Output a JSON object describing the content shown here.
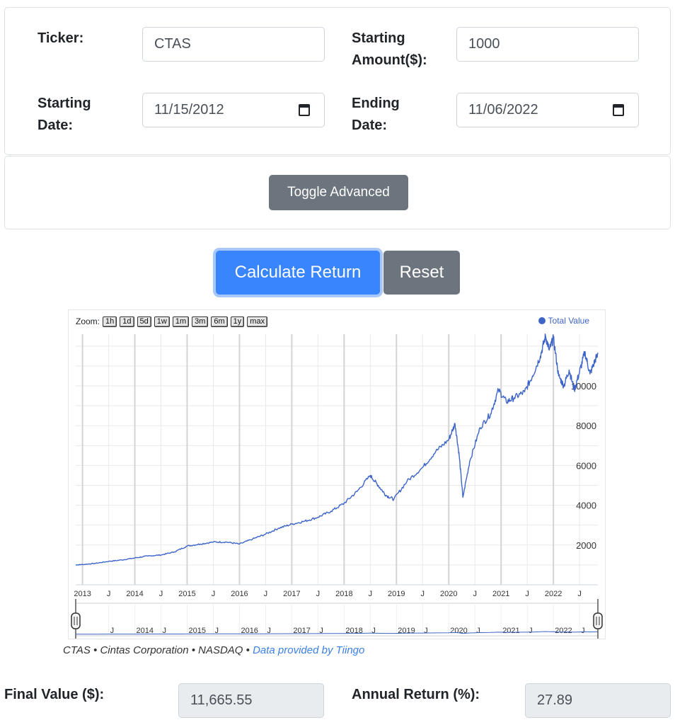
{
  "form": {
    "ticker_label": "Ticker:",
    "ticker_value": "CTAS",
    "amount_label_1": "Starting",
    "amount_label_2": "Amount($):",
    "amount_value": "1000",
    "start_label_1": "Starting",
    "start_label_2": "Date:",
    "start_value": "11/15/2012",
    "end_label_1": "Ending",
    "end_label_2": "Date:",
    "end_value": "11/06/2022"
  },
  "buttons": {
    "toggle_advanced": "Toggle Advanced",
    "calculate": "Calculate Return",
    "reset": "Reset"
  },
  "chart": {
    "zoom_label": "Zoom:",
    "zoom_buttons": [
      "1h",
      "1d",
      "5d",
      "1w",
      "1m",
      "3m",
      "6m",
      "1y",
      "max"
    ],
    "legend": "Total Value",
    "colors": {
      "series": "#3d64c8",
      "grid": "#e9e9e9",
      "legend_dot": "#3d64c8"
    },
    "caption_main": "CTAS • Cintas Corporation • NASDAQ • ",
    "caption_link": "Data provided by Tiingo",
    "link_color": "#3c7fe6"
  },
  "chart_data": {
    "type": "line",
    "series": [
      {
        "name": "Total Value",
        "x": [
          2012.87,
          2013.0,
          2013.25,
          2013.5,
          2013.75,
          2014.0,
          2014.25,
          2014.5,
          2014.75,
          2015.0,
          2015.25,
          2015.5,
          2015.75,
          2016.0,
          2016.25,
          2016.5,
          2016.75,
          2017.0,
          2017.25,
          2017.5,
          2017.75,
          2018.0,
          2018.25,
          2018.5,
          2018.65,
          2018.8,
          2018.95,
          2019.2,
          2019.5,
          2019.75,
          2020.0,
          2020.12,
          2020.2,
          2020.27,
          2020.4,
          2020.6,
          2020.8,
          2020.95,
          2021.1,
          2021.25,
          2021.45,
          2021.6,
          2021.75,
          2021.85,
          2021.92,
          2022.0,
          2022.1,
          2022.2,
          2022.3,
          2022.4,
          2022.5,
          2022.6,
          2022.7,
          2022.8,
          2022.85
        ],
        "y": [
          1000,
          1020,
          1080,
          1180,
          1250,
          1350,
          1450,
          1500,
          1650,
          1950,
          2050,
          2150,
          2150,
          2050,
          2300,
          2550,
          2850,
          3050,
          3200,
          3400,
          3700,
          4100,
          4700,
          5500,
          5000,
          4500,
          4300,
          5200,
          5900,
          6700,
          7300,
          8100,
          6500,
          4400,
          6200,
          7900,
          8600,
          9800,
          9200,
          9400,
          9700,
          10500,
          11500,
          12500,
          11800,
          12400,
          10500,
          10000,
          10800,
          9800,
          10700,
          11700,
          10600,
          11300,
          11665.55
        ]
      }
    ],
    "x_ticks": [
      "2013",
      "J",
      "2014",
      "J",
      "2015",
      "J",
      "2016",
      "J",
      "2017",
      "J",
      "2018",
      "J",
      "2019",
      "J",
      "2020",
      "J",
      "2021",
      "J",
      "2022",
      "J"
    ],
    "y_ticks": [
      "2000",
      "4000",
      "6000",
      "8000",
      "10000"
    ],
    "navigator_ticks": [
      "J",
      "2014",
      "J",
      "2015",
      "J",
      "2016",
      "J",
      "2017",
      "J",
      "2018",
      "J",
      "2019",
      "J",
      "2020",
      "J",
      "2021",
      "J",
      "2022",
      "J"
    ],
    "ylim": [
      0,
      12600
    ],
    "xlim": [
      2012.87,
      2022.85
    ],
    "grid": true,
    "legend_position": "top-right"
  },
  "results": {
    "final_label": "Final Value ($):",
    "final_value": "11,665.55",
    "annual_label": "Annual Return (%):",
    "annual_value": "27.89"
  }
}
